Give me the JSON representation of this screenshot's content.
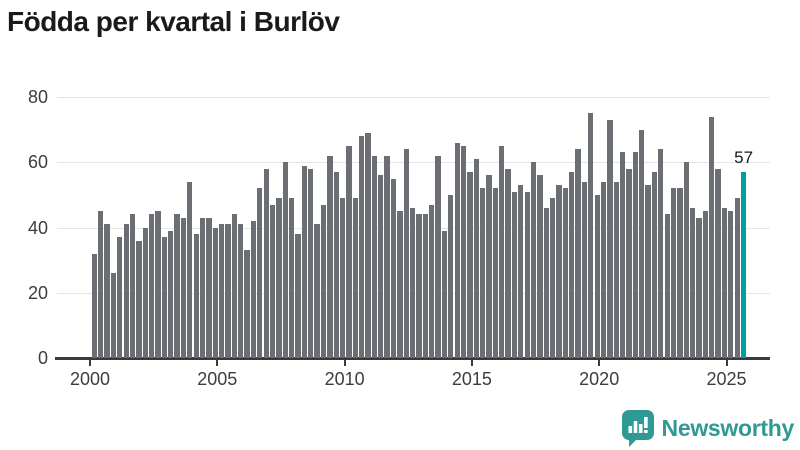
{
  "title": "Födda per kvartal i Burlöv",
  "chart_data": {
    "type": "bar",
    "title": "Födda per kvartal i Burlöv",
    "xlabel": "",
    "ylabel": "",
    "ylim": [
      0,
      80
    ],
    "yticks": [
      0,
      20,
      40,
      60,
      80
    ],
    "xticks": [
      "2000",
      "2005",
      "2010",
      "2015",
      "2020",
      "2025"
    ],
    "grid": "horizontal",
    "legend": "none",
    "bar_color": "#6b6f74",
    "highlight_color": "#00a0a0",
    "highlight_index": 102,
    "highlight_value_label": "57",
    "categories": [
      "2000Q1",
      "2000Q2",
      "2000Q3",
      "2000Q4",
      "2001Q1",
      "2001Q2",
      "2001Q3",
      "2001Q4",
      "2002Q1",
      "2002Q2",
      "2002Q3",
      "2002Q4",
      "2003Q1",
      "2003Q2",
      "2003Q3",
      "2003Q4",
      "2004Q1",
      "2004Q2",
      "2004Q3",
      "2004Q4",
      "2005Q1",
      "2005Q2",
      "2005Q3",
      "2005Q4",
      "2006Q1",
      "2006Q2",
      "2006Q3",
      "2006Q4",
      "2007Q1",
      "2007Q2",
      "2007Q3",
      "2007Q4",
      "2008Q1",
      "2008Q2",
      "2008Q3",
      "2008Q4",
      "2009Q1",
      "2009Q2",
      "2009Q3",
      "2009Q4",
      "2010Q1",
      "2010Q2",
      "2010Q3",
      "2010Q4",
      "2011Q1",
      "2011Q2",
      "2011Q3",
      "2011Q4",
      "2012Q1",
      "2012Q2",
      "2012Q3",
      "2012Q4",
      "2013Q1",
      "2013Q2",
      "2013Q3",
      "2013Q4",
      "2014Q1",
      "2014Q2",
      "2014Q3",
      "2014Q4",
      "2015Q1",
      "2015Q2",
      "2015Q3",
      "2015Q4",
      "2016Q1",
      "2016Q2",
      "2016Q3",
      "2016Q4",
      "2017Q1",
      "2017Q2",
      "2017Q3",
      "2017Q4",
      "2018Q1",
      "2018Q2",
      "2018Q3",
      "2018Q4",
      "2019Q1",
      "2019Q2",
      "2019Q3",
      "2019Q4",
      "2020Q1",
      "2020Q2",
      "2020Q3",
      "2020Q4",
      "2021Q1",
      "2021Q2",
      "2021Q3",
      "2021Q4",
      "2022Q1",
      "2022Q2",
      "2022Q3",
      "2022Q4",
      "2023Q1",
      "2023Q2",
      "2023Q3",
      "2023Q4",
      "2024Q1",
      "2024Q2",
      "2024Q3",
      "2024Q4",
      "2025Q1",
      "2025Q2",
      "2025Q3"
    ],
    "values": [
      32,
      45,
      41,
      26,
      37,
      41,
      44,
      36,
      40,
      44,
      45,
      37,
      39,
      44,
      43,
      54,
      38,
      43,
      43,
      40,
      41,
      41,
      44,
      41,
      33,
      42,
      52,
      58,
      47,
      49,
      60,
      49,
      38,
      59,
      58,
      41,
      47,
      62,
      57,
      49,
      65,
      49,
      68,
      69,
      62,
      56,
      62,
      55,
      45,
      64,
      46,
      44,
      44,
      47,
      62,
      39,
      50,
      66,
      65,
      57,
      61,
      52,
      56,
      52,
      65,
      58,
      51,
      53,
      51,
      60,
      56,
      46,
      49,
      53,
      52,
      57,
      64,
      54,
      75,
      50,
      54,
      73,
      54,
      63,
      58,
      63,
      70,
      53,
      57,
      64,
      44,
      52,
      52,
      60,
      46,
      43,
      45,
      74,
      58,
      46,
      45,
      49,
      57
    ]
  },
  "branding": {
    "logo_text": "Newsworthy",
    "logo_color": "#2f9a94",
    "logo_icon": "bar-chart-speech-bubble"
  }
}
